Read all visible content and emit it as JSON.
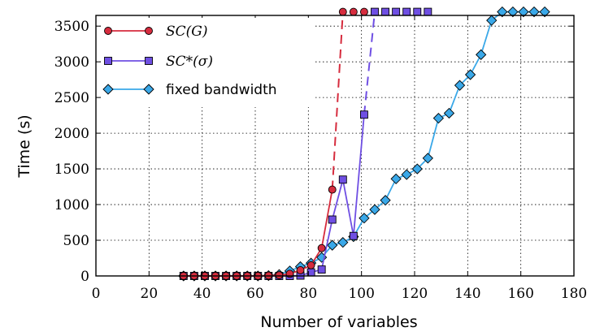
{
  "chart_data": {
    "type": "line",
    "xlabel": "Number of variables",
    "ylabel": "Time (s)",
    "xlim": [
      0,
      180
    ],
    "ylim": [
      0,
      3650
    ],
    "xticks": [
      "0",
      "20",
      "40",
      "60",
      "80",
      "100",
      "120",
      "140",
      "160",
      "180"
    ],
    "yticks": [
      "0",
      "500",
      "1000",
      "1500",
      "2000",
      "2500",
      "3000",
      "3500"
    ],
    "grid": true,
    "legend_position": "top-left",
    "timeout_value": 3700,
    "series": [
      {
        "name": "SC(G)",
        "color": "#d62c3e",
        "marker": "circle",
        "line_style": "solid",
        "points": [
          [
            33,
            0
          ],
          [
            37,
            0
          ],
          [
            41,
            0
          ],
          [
            45,
            0
          ],
          [
            49,
            0
          ],
          [
            53,
            0
          ],
          [
            57,
            0
          ],
          [
            61,
            0
          ],
          [
            65,
            5
          ],
          [
            69,
            10
          ],
          [
            73,
            30
          ],
          [
            77,
            80
          ],
          [
            81,
            150
          ],
          [
            85,
            390
          ],
          [
            89,
            1210
          ]
        ],
        "timeout_line": [
          [
            89,
            1210
          ],
          [
            93,
            3700
          ]
        ],
        "timeout_points": [
          [
            93,
            3700
          ],
          [
            97,
            3700
          ],
          [
            101,
            3700
          ]
        ]
      },
      {
        "name": "SC*(σ)",
        "color": "#6f4fe3",
        "marker": "square",
        "line_style": "solid",
        "points": [
          [
            33,
            0
          ],
          [
            37,
            0
          ],
          [
            41,
            0
          ],
          [
            45,
            0
          ],
          [
            49,
            0
          ],
          [
            53,
            0
          ],
          [
            57,
            0
          ],
          [
            61,
            0
          ],
          [
            65,
            0
          ],
          [
            69,
            0
          ],
          [
            73,
            0
          ],
          [
            77,
            5
          ],
          [
            81,
            50
          ],
          [
            85,
            90
          ],
          [
            89,
            790
          ],
          [
            93,
            1350
          ],
          [
            97,
            560
          ],
          [
            101,
            2260
          ]
        ],
        "timeout_line": [
          [
            101,
            2260
          ],
          [
            105,
            3700
          ]
        ],
        "timeout_points": [
          [
            105,
            3700
          ],
          [
            109,
            3700
          ],
          [
            113,
            3700
          ],
          [
            117,
            3700
          ],
          [
            121,
            3700
          ],
          [
            125,
            3700
          ]
        ]
      },
      {
        "name": "fixed bandwidth",
        "color": "#3aa8e8",
        "marker": "diamond",
        "line_style": "solid",
        "points": [
          [
            33,
            0
          ],
          [
            37,
            0
          ],
          [
            41,
            0
          ],
          [
            45,
            0
          ],
          [
            49,
            0
          ],
          [
            53,
            0
          ],
          [
            57,
            0
          ],
          [
            61,
            0
          ],
          [
            65,
            5
          ],
          [
            69,
            20
          ],
          [
            73,
            70
          ],
          [
            77,
            130
          ],
          [
            81,
            180
          ],
          [
            85,
            260
          ],
          [
            89,
            430
          ],
          [
            93,
            470
          ],
          [
            97,
            550
          ],
          [
            101,
            810
          ],
          [
            105,
            930
          ],
          [
            109,
            1060
          ],
          [
            113,
            1360
          ],
          [
            117,
            1420
          ],
          [
            121,
            1500
          ],
          [
            125,
            1650
          ],
          [
            129,
            2210
          ],
          [
            133,
            2280
          ],
          [
            137,
            2670
          ],
          [
            141,
            2820
          ],
          [
            145,
            3100
          ],
          [
            149,
            3580
          ],
          [
            153,
            3700
          ],
          [
            157,
            3700
          ],
          [
            161,
            3700
          ],
          [
            165,
            3700
          ],
          [
            169,
            3700
          ]
        ]
      }
    ]
  }
}
